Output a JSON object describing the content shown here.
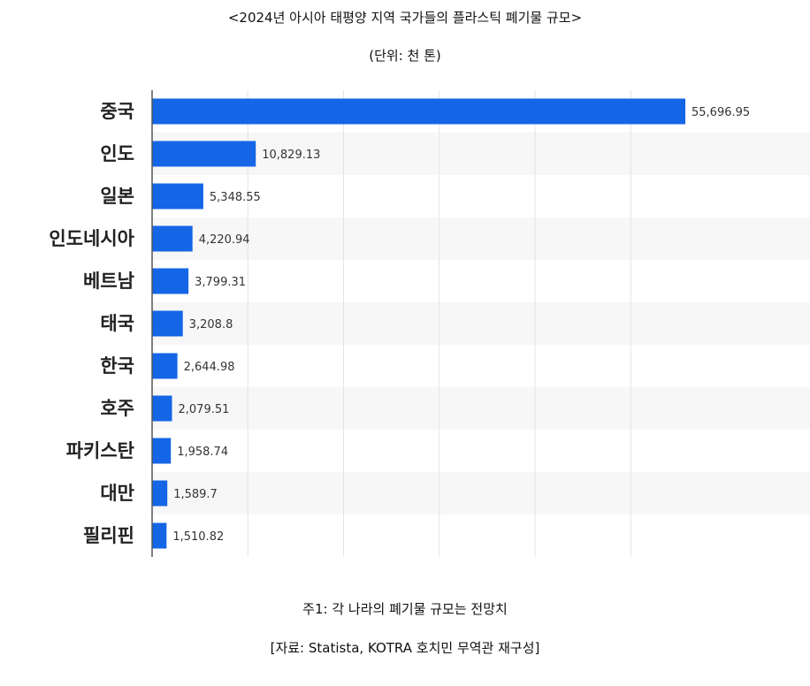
{
  "header": {
    "title": "<2024년 아시아 태평양 지역 국가들의 플라스틱 폐기물 규모>",
    "subtitle": "(단위: 천 톤)"
  },
  "footer": {
    "note": "주1: 각 나라의 폐기물 규모는 전망치",
    "source": "[자료: Statista, KOTRA 호치민 무역관 재구성]"
  },
  "colors": {
    "bar": "#1466e6",
    "band": "#f7f7f7",
    "grid": "#e4e4e4",
    "axis": "#555555"
  },
  "chart_data": {
    "type": "bar",
    "orientation": "horizontal",
    "categories": [
      "중국",
      "인도",
      "일본",
      "인도네시아",
      "베트남",
      "태국",
      "한국",
      "호주",
      "파키스탄",
      "대만",
      "필리핀"
    ],
    "values": [
      55696.95,
      10829.13,
      5348.55,
      4220.94,
      3799.31,
      3208.8,
      2644.98,
      2079.51,
      1958.74,
      1589.7,
      1510.82
    ],
    "value_labels": [
      "55,696.95",
      "10,829.13",
      "5,348.55",
      "4,220.94",
      "3,799.31",
      "3,208.8",
      "2,644.98",
      "2,079.51",
      "1,958.74",
      "1,589.7",
      "1,510.82"
    ],
    "xlim": [
      0,
      60000
    ],
    "grid": true,
    "legend": "none"
  }
}
